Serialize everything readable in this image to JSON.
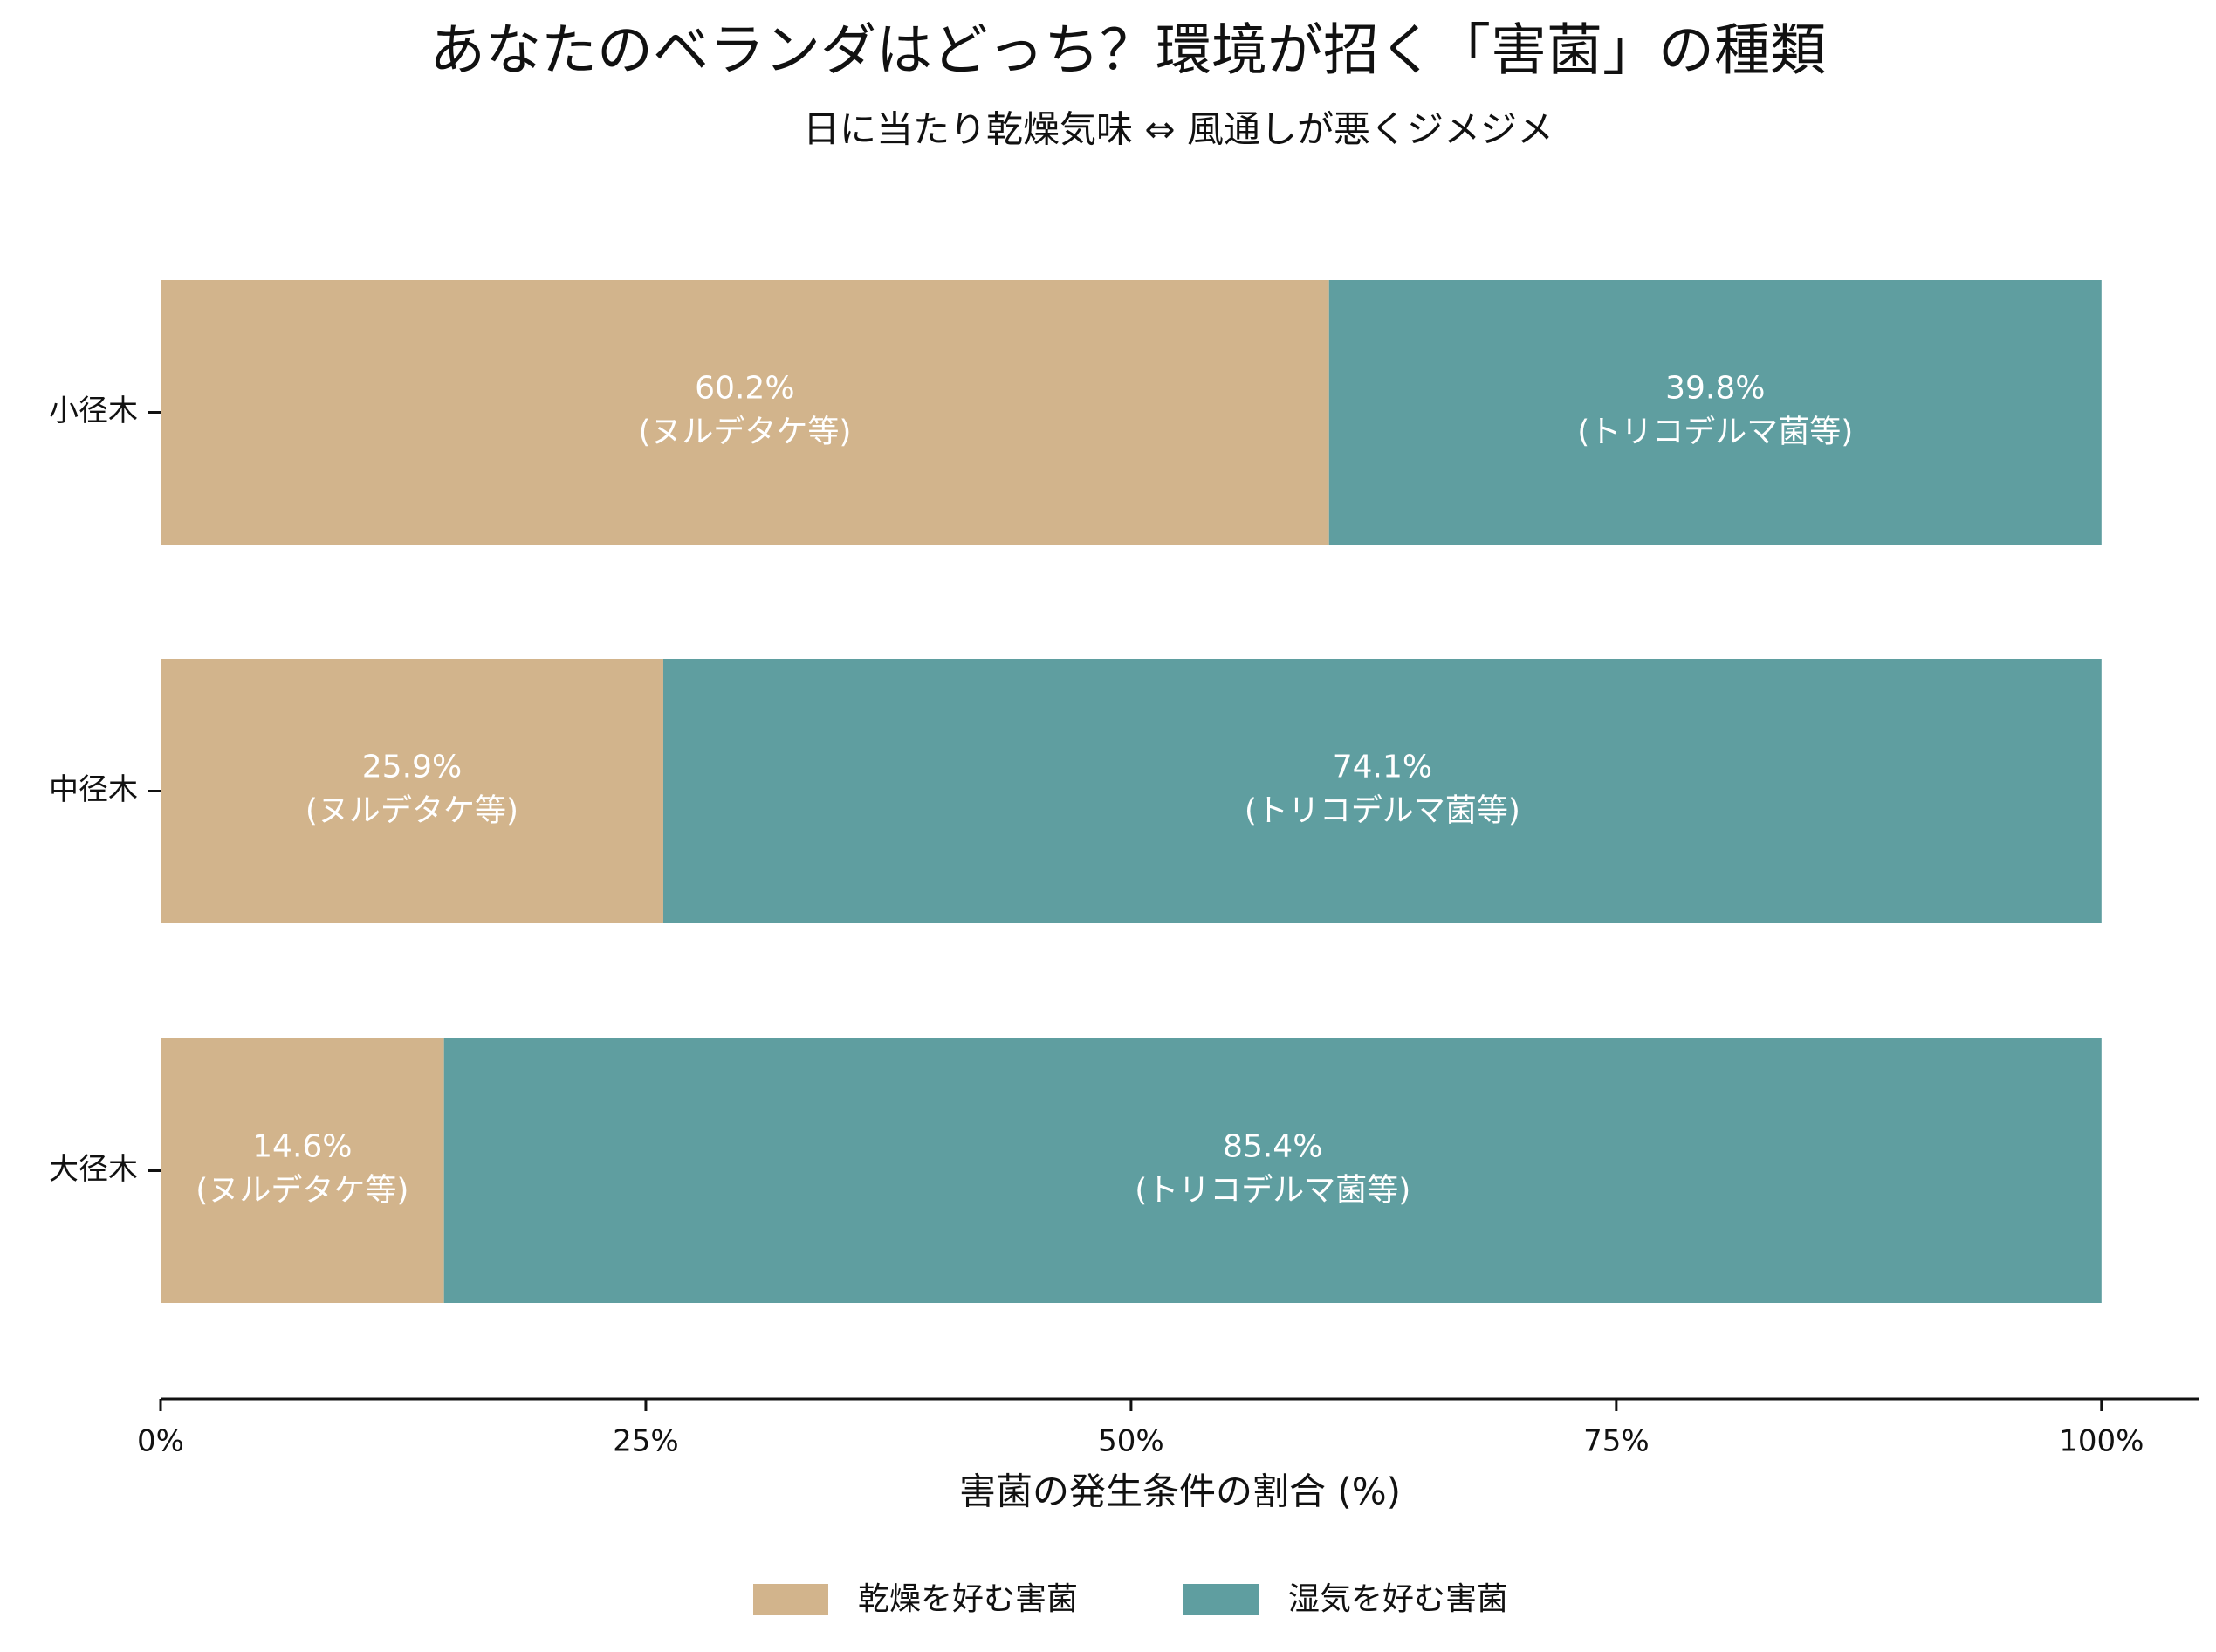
{
  "chart_data": {
    "type": "stacked-barh",
    "title": "あなたのベランダはどっち？環境が招く「害菌」の種類",
    "subtitle": "日に当たり乾燥気味 ⇔ 風通しが悪くジメジメ",
    "xlabel": "害菌の発生条件の割合 (%)",
    "categories": [
      "小径木",
      "中径木",
      "大径木"
    ],
    "series": [
      {
        "name": "乾燥を好む害菌",
        "color": "#d2b48c",
        "values": [
          60.2,
          25.9,
          14.6
        ],
        "value_labels": [
          "60.2%",
          "25.9%",
          "14.6%"
        ],
        "note": "(ヌルデタケ等)"
      },
      {
        "name": "湿気を好む害菌",
        "color": "#5f9ea0",
        "values": [
          39.8,
          74.1,
          85.4
        ],
        "value_labels": [
          "39.8%",
          "74.1%",
          "85.4%"
        ],
        "note": "(トリコデルマ菌等)"
      }
    ],
    "xlim": [
      0,
      105
    ],
    "xticks": [
      {
        "value": 0,
        "label": "0%"
      },
      {
        "value": 25,
        "label": "25%"
      },
      {
        "value": 50,
        "label": "50%"
      },
      {
        "value": 75,
        "label": "75%"
      },
      {
        "value": 100,
        "label": "100%"
      }
    ],
    "legend": "bottom"
  }
}
